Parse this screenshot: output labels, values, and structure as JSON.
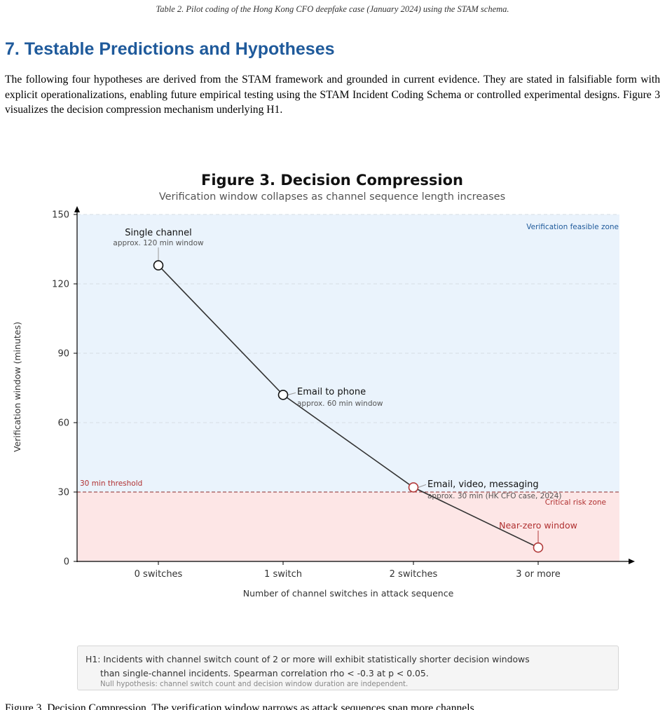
{
  "table_caption": "Table 2. Pilot coding of the Hong Kong CFO deepfake case (January 2024) using the STAM schema.",
  "section": {
    "title": "7. Testable Predictions and Hypotheses",
    "paragraph": "The following four hypotheses are derived from the STAM framework and grounded in current evidence. They are stated in falsifiable form with explicit operationalizations, enabling future empirical testing using the STAM Incident Coding Schema or controlled experimental designs. Figure 3 visualizes the decision compression mechanism underlying H1."
  },
  "chart_data": {
    "type": "line",
    "title": "Figure 3.  Decision Compression",
    "subtitle": "Verification window collapses as channel sequence length increases",
    "xlabel": "Number of channel switches in attack sequence",
    "ylabel": "Verification window (minutes)",
    "categories": [
      "0 switches",
      "1 switch",
      "2 switches",
      "3 or more"
    ],
    "values": [
      128,
      72,
      32,
      6
    ],
    "ylim": [
      0,
      150
    ],
    "yticks": [
      0,
      30,
      60,
      90,
      120,
      150
    ],
    "grid": "horizontal dashed",
    "threshold": {
      "value": 30,
      "label": "30 min threshold"
    },
    "zones": {
      "upper": {
        "label": "Verification feasible zone",
        "color": "#eaf3fc"
      },
      "lower": {
        "label": "Critical risk zone",
        "color": "#fde6e6"
      }
    },
    "annotations": [
      {
        "label": "Single channel",
        "sublabel": "approx. 120 min window"
      },
      {
        "label": "Email to phone",
        "sublabel": "approx. 60 min window"
      },
      {
        "label": "Email, video, messaging",
        "sublabel": "approx. 30 min (HK CFO case, 2024)"
      },
      {
        "label": "Near-zero window",
        "sublabel": ""
      }
    ],
    "colors": {
      "line": "#333333",
      "safe_marker": "#111111",
      "risk_marker": "#b23a3a",
      "risk_text": "#b03030",
      "safe_text": "#1f5a9b"
    }
  },
  "hypothesis": {
    "line1": "H1:  Incidents with channel switch count of 2 or more will exhibit statistically shorter decision windows",
    "line2": "than single-channel incidents.  Spearman correlation rho < -0.3 at p < 0.05.",
    "null": "Null hypothesis: channel switch count and decision window duration are independent."
  },
  "truncated_text": "Figure 3. Decision Compression. The verification window narrows as attack sequences span more channels."
}
